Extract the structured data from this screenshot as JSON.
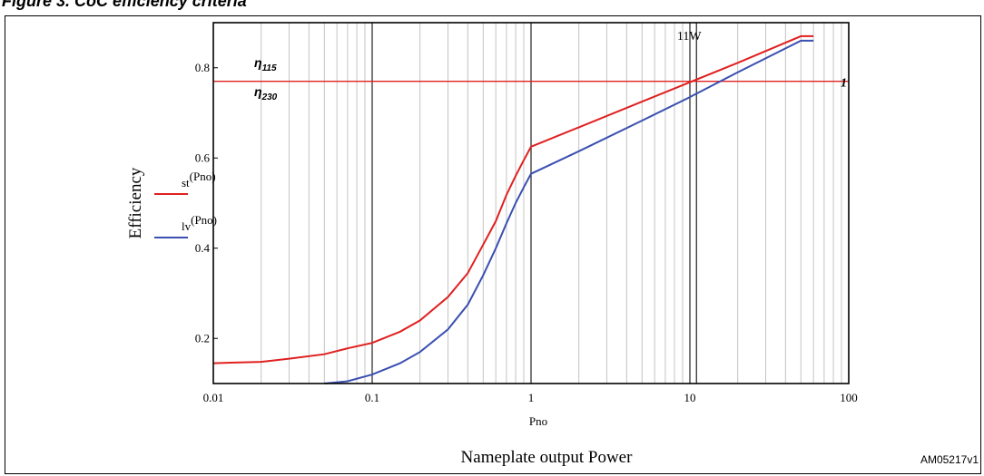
{
  "figure_caption": "Figure 3.    CoC efficiency criteria",
  "reference_code": "AM05217v1",
  "chart_data": {
    "type": "line",
    "x_scale": "log",
    "xlim": [
      0.01,
      100
    ],
    "ylim": [
      0.1,
      0.9
    ],
    "x_ticks": [
      0.01,
      0.1,
      1,
      10,
      100
    ],
    "x_tick_labels": [
      "0.01",
      "0.1",
      "1",
      "10",
      "100"
    ],
    "y_ticks": [
      0.2,
      0.4,
      0.6,
      0.8
    ],
    "y_tick_labels": [
      "0.2",
      "0.4",
      "0.6",
      "0.8"
    ],
    "grid": true,
    "xlabel_variable": "Pno",
    "xlabel": "Nameplate output Power",
    "ylabel": "Efficiency",
    "series": [
      {
        "name": "st(Pno)",
        "legend_prefix": "st",
        "legend_arg": "(Pno)",
        "color": "#e02020",
        "x": [
          0.01,
          0.02,
          0.03,
          0.05,
          0.07,
          0.1,
          0.15,
          0.2,
          0.3,
          0.4,
          0.5,
          0.6,
          0.7,
          0.8,
          0.9,
          1,
          2,
          5,
          10,
          20,
          50,
          60
        ],
        "y": [
          0.145,
          0.148,
          0.155,
          0.165,
          0.178,
          0.19,
          0.215,
          0.24,
          0.292,
          0.345,
          0.408,
          0.46,
          0.518,
          0.56,
          0.595,
          0.625,
          0.668,
          0.725,
          0.768,
          0.811,
          0.87,
          0.87
        ]
      },
      {
        "name": "lv(Pno)",
        "legend_prefix": "lv",
        "legend_arg": "(Pno)",
        "color": "#3a4fb0",
        "x": [
          0.05,
          0.07,
          0.1,
          0.15,
          0.2,
          0.3,
          0.4,
          0.5,
          0.6,
          0.7,
          0.8,
          0.9,
          1,
          2,
          5,
          10,
          20,
          50,
          60
        ],
        "y": [
          0.1,
          0.105,
          0.12,
          0.145,
          0.17,
          0.22,
          0.275,
          0.34,
          0.4,
          0.455,
          0.5,
          0.535,
          0.565,
          0.615,
          0.683,
          0.735,
          0.79,
          0.86,
          0.86
        ]
      }
    ],
    "reference_lines": [
      {
        "y": 0.77,
        "color": "#e02020",
        "label_right": "1"
      }
    ],
    "vertical_marker": {
      "x": 11,
      "label": "11W"
    },
    "annotations": [
      {
        "main": "η",
        "sub": "115"
      },
      {
        "main": "η",
        "sub": "230"
      }
    ]
  }
}
